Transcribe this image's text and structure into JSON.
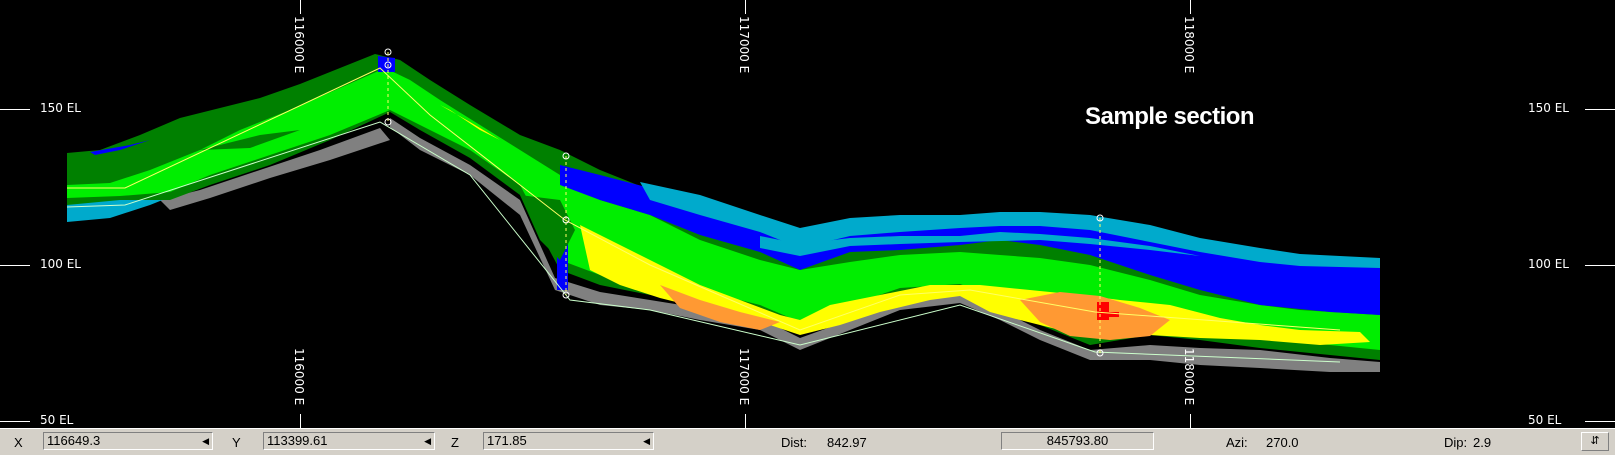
{
  "section": {
    "title": "Sample section",
    "elevation_labels": [
      "150  EL",
      "100  EL",
      "50  EL"
    ],
    "easting_labels": [
      "116000  E",
      "117000  E",
      "118000  E"
    ]
  },
  "status": {
    "x_label": "X",
    "x_value": "116649.3",
    "y_label": "Y",
    "y_value": "113399.61",
    "z_label": "Z",
    "z_value": "171.85",
    "dist_label": "Dist:",
    "dist_value": "842.97",
    "area_value": "845793.80",
    "azi_label": "Azi:",
    "azi_value": "270.0",
    "dip_label": "Dip:",
    "dip_value": "2.9"
  },
  "icons": {
    "dropdown": "triangle-left-icon",
    "menu": "up-down-arrows-icon"
  },
  "colors": {
    "background": "#000000",
    "grade_low": "#0000ff",
    "grade_cyan": "#00aacc",
    "grade_dark_green": "#008000",
    "grade_green": "#00ff00",
    "grade_yellow": "#ffff00",
    "grade_orange": "#ff9933",
    "grade_red": "#ff0000",
    "waste": "#808080"
  }
}
